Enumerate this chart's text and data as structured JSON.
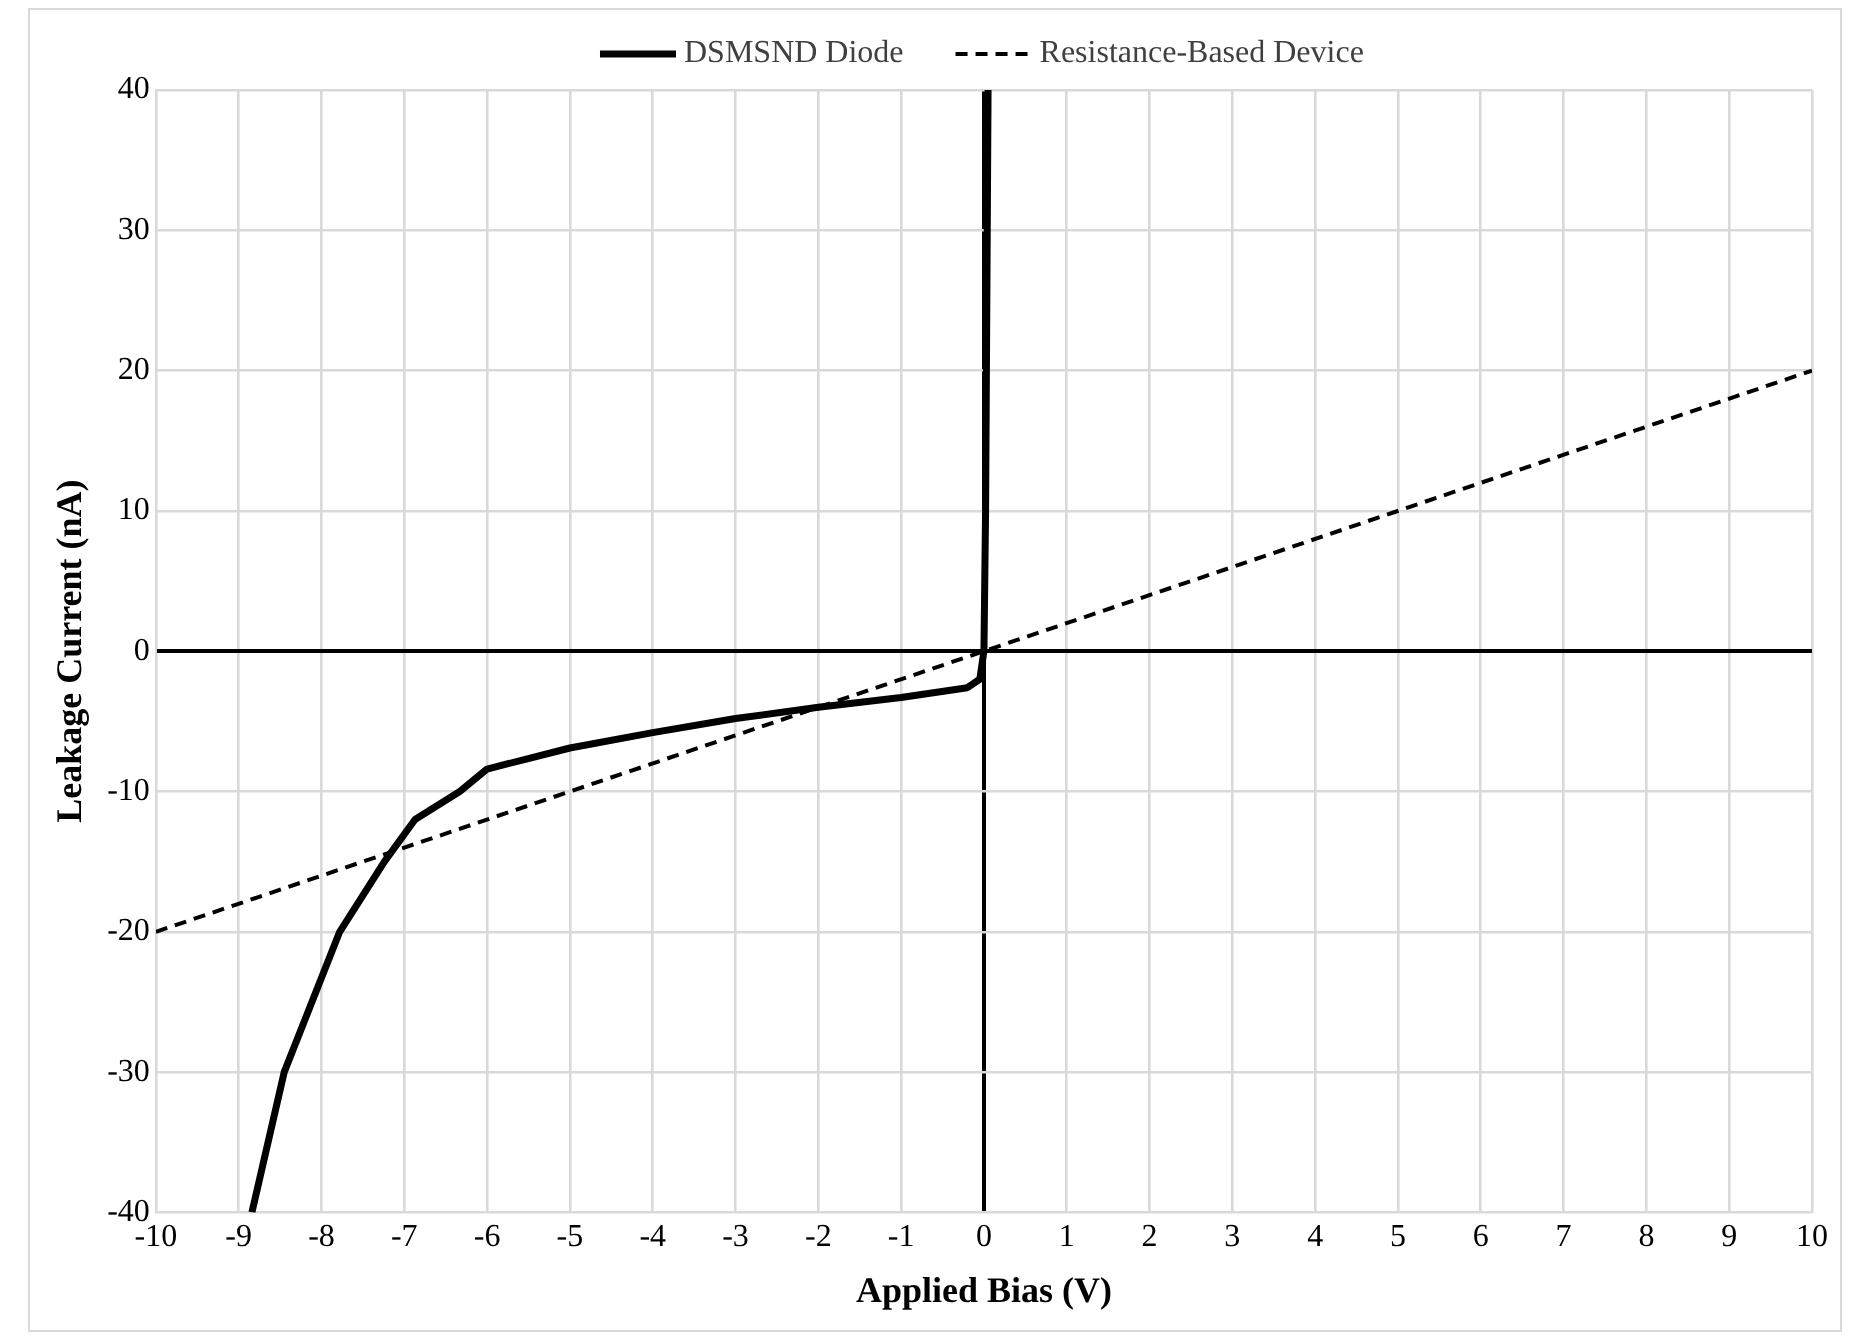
{
  "chart_data": {
    "type": "line",
    "xlabel": "Applied Bias (V)",
    "ylabel": "Leakage Current (nA)",
    "xlim": [
      -10,
      10
    ],
    "xticks": [
      -10,
      -9,
      -8,
      -7,
      -6,
      -5,
      -4,
      -3,
      -2,
      -1,
      0,
      1,
      2,
      3,
      4,
      5,
      6,
      7,
      8,
      9,
      10
    ],
    "ylim": [
      -40,
      40
    ],
    "yticks": [
      -40,
      -30,
      -20,
      -10,
      0,
      10,
      20,
      30,
      40
    ],
    "grid": true,
    "legend": "top",
    "marker": "none",
    "series": [
      {
        "name": "DSMSND Diode",
        "color": "#000000",
        "line_style": "solid",
        "x": [
          -8.84,
          -8.45,
          -7.78,
          -7.24,
          -6.87,
          -6.33,
          -6,
          -5,
          -4,
          -3,
          -2,
          -1,
          -0.2,
          -0.05,
          0,
          0.02,
          0.04,
          0.05
        ],
        "values": [
          -40,
          -30,
          -20,
          -15,
          -12,
          -10,
          -8.4,
          -6.9,
          -5.8,
          -4.8,
          -4,
          -3.3,
          -2.6,
          -2,
          0,
          10,
          30,
          40
        ]
      },
      {
        "name": "Resistance-Based Device",
        "color": "#000000",
        "line_style": "dashed",
        "x": [
          -10,
          10
        ],
        "values": [
          -20,
          20
        ]
      }
    ]
  }
}
